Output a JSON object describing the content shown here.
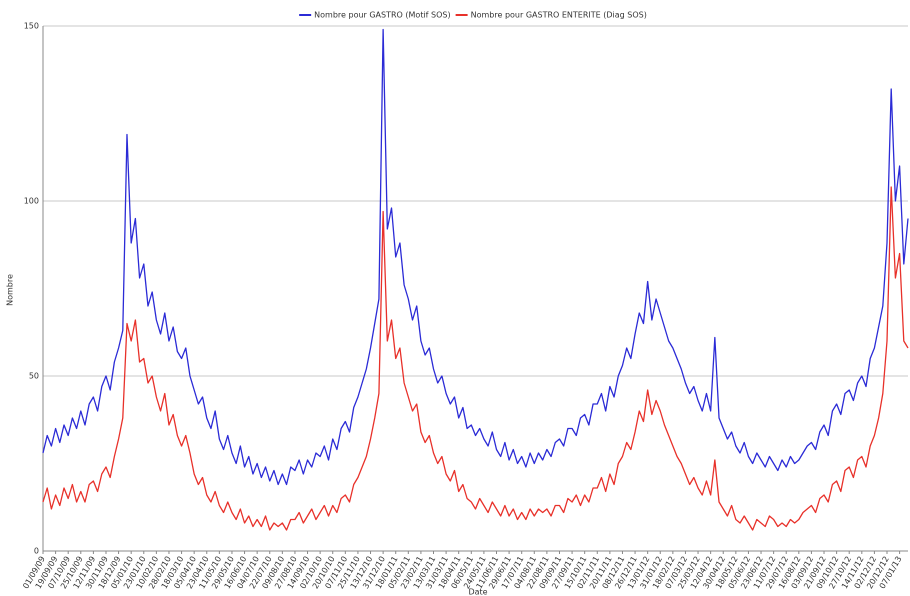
{
  "chart_data": {
    "type": "line",
    "legend": "top",
    "grid": true,
    "y_label": "Nombre",
    "x_label": "Date",
    "ylim": [
      0,
      150
    ],
    "yticks": [
      0,
      50,
      100,
      150
    ],
    "categories": [
      "01/09/09",
      null,
      null,
      "19/09/09",
      null,
      null,
      "07/10/09",
      null,
      null,
      "25/10/09",
      null,
      null,
      "12/11/09",
      null,
      null,
      "30/11/09",
      null,
      null,
      "18/12/09",
      null,
      null,
      "05/01/10",
      null,
      null,
      "23/01/10",
      null,
      null,
      "10/02/10",
      null,
      null,
      "28/02/10",
      null,
      null,
      "18/03/10",
      null,
      null,
      "05/04/10",
      null,
      null,
      "23/04/10",
      null,
      null,
      "11/05/10",
      null,
      null,
      "29/05/10",
      null,
      null,
      "16/06/10",
      null,
      null,
      "04/07/10",
      null,
      null,
      "22/07/10",
      null,
      null,
      "09/08/10",
      null,
      null,
      "27/08/10",
      null,
      null,
      "14/09/10",
      null,
      null,
      "02/10/10",
      null,
      null,
      "20/10/10",
      null,
      null,
      "07/11/10",
      null,
      null,
      "25/11/10",
      null,
      null,
      "13/12/10",
      null,
      null,
      "31/12/10",
      null,
      null,
      "18/01/11",
      null,
      null,
      "05/02/11",
      null,
      null,
      "23/02/11",
      null,
      null,
      "13/03/11",
      null,
      null,
      "31/03/11",
      null,
      null,
      "18/04/11",
      null,
      null,
      "06/05/11",
      null,
      null,
      "24/05/11",
      null,
      null,
      "11/06/11",
      null,
      null,
      "29/06/11",
      null,
      null,
      "17/07/11",
      null,
      null,
      "04/08/11",
      null,
      null,
      "22/08/11",
      null,
      null,
      "09/09/11",
      null,
      null,
      "27/09/11",
      null,
      null,
      "15/10/11",
      null,
      null,
      "02/11/11",
      null,
      null,
      "20/11/11",
      null,
      null,
      "08/12/11",
      null,
      null,
      "26/12/11",
      null,
      null,
      "13/01/12",
      null,
      null,
      "31/01/12",
      null,
      null,
      "18/02/12",
      null,
      null,
      "07/03/12",
      null,
      null,
      "25/03/12",
      null,
      null,
      "12/04/12",
      null,
      null,
      "30/04/12",
      null,
      null,
      "18/05/12",
      null,
      null,
      "05/06/12",
      null,
      null,
      "23/06/12",
      null,
      null,
      "11/07/12",
      null,
      null,
      "29/07/12",
      null,
      null,
      "16/08/12",
      null,
      null,
      "03/09/12",
      null,
      null,
      "21/09/12",
      null,
      null,
      "09/10/12",
      null,
      null,
      "27/10/12",
      null,
      null,
      "14/11/12",
      null,
      null,
      "02/12/12",
      null,
      null,
      "20/12/12",
      null,
      null,
      "07/01/13",
      null,
      null
    ],
    "series": [
      {
        "name": "Nombre pour GASTRO (Motif SOS)",
        "color": "#2b2bd6",
        "values": [
          28,
          33,
          30,
          35,
          31,
          36,
          33,
          38,
          35,
          40,
          36,
          42,
          44,
          40,
          47,
          50,
          46,
          54,
          58,
          63,
          119,
          88,
          95,
          78,
          82,
          70,
          74,
          66,
          62,
          68,
          60,
          64,
          57,
          55,
          58,
          50,
          46,
          42,
          44,
          38,
          35,
          40,
          32,
          29,
          33,
          28,
          25,
          30,
          24,
          27,
          22,
          25,
          21,
          24,
          20,
          23,
          19,
          22,
          19,
          24,
          23,
          26,
          22,
          26,
          24,
          28,
          27,
          30,
          26,
          32,
          29,
          35,
          37,
          34,
          41,
          44,
          48,
          52,
          58,
          65,
          72,
          149,
          92,
          98,
          84,
          88,
          76,
          72,
          66,
          70,
          60,
          56,
          58,
          52,
          48,
          50,
          45,
          42,
          44,
          38,
          41,
          35,
          36,
          33,
          35,
          32,
          30,
          34,
          29,
          27,
          31,
          26,
          29,
          25,
          27,
          24,
          28,
          25,
          28,
          26,
          29,
          27,
          31,
          32,
          30,
          35,
          35,
          33,
          38,
          39,
          36,
          42,
          42,
          45,
          40,
          47,
          44,
          50,
          53,
          58,
          55,
          62,
          68,
          65,
          77,
          66,
          72,
          68,
          64,
          60,
          58,
          55,
          52,
          48,
          45,
          47,
          43,
          40,
          45,
          40,
          61,
          38,
          35,
          32,
          34,
          30,
          28,
          31,
          27,
          25,
          28,
          26,
          24,
          27,
          25,
          23,
          26,
          24,
          27,
          25,
          26,
          28,
          30,
          31,
          29,
          34,
          36,
          33,
          40,
          42,
          39,
          45,
          46,
          43,
          48,
          50,
          47,
          55,
          58,
          64,
          70,
          88,
          132,
          100,
          110,
          82,
          95
        ]
      },
      {
        "name": "Nombre pour GASTRO ENTERITE (Diag SOS)",
        "color": "#e8312a",
        "values": [
          14,
          18,
          12,
          16,
          13,
          18,
          15,
          19,
          14,
          17,
          14,
          19,
          20,
          17,
          22,
          24,
          21,
          27,
          32,
          38,
          65,
          60,
          66,
          54,
          55,
          48,
          50,
          44,
          40,
          45,
          36,
          39,
          33,
          30,
          33,
          28,
          22,
          19,
          21,
          16,
          14,
          17,
          13,
          11,
          14,
          11,
          9,
          12,
          8,
          10,
          7,
          9,
          7,
          10,
          6,
          8,
          7,
          8,
          6,
          9,
          9,
          11,
          8,
          10,
          12,
          9,
          11,
          13,
          10,
          13,
          11,
          15,
          16,
          14,
          19,
          21,
          24,
          27,
          32,
          38,
          45,
          97,
          60,
          66,
          55,
          58,
          48,
          44,
          40,
          42,
          34,
          31,
          33,
          28,
          25,
          27,
          22,
          20,
          23,
          17,
          19,
          15,
          14,
          12,
          15,
          13,
          11,
          14,
          12,
          10,
          13,
          10,
          12,
          9,
          11,
          9,
          12,
          10,
          12,
          11,
          12,
          10,
          13,
          13,
          11,
          15,
          14,
          16,
          13,
          16,
          14,
          18,
          18,
          21,
          17,
          22,
          19,
          25,
          27,
          31,
          29,
          34,
          40,
          37,
          46,
          39,
          43,
          40,
          36,
          33,
          30,
          27,
          25,
          22,
          19,
          21,
          18,
          16,
          20,
          16,
          26,
          14,
          12,
          10,
          13,
          9,
          8,
          10,
          8,
          6,
          9,
          8,
          7,
          10,
          9,
          7,
          8,
          7,
          9,
          8,
          9,
          11,
          12,
          13,
          11,
          15,
          16,
          14,
          19,
          20,
          17,
          23,
          24,
          21,
          26,
          27,
          24,
          30,
          33,
          38,
          45,
          60,
          104,
          78,
          85,
          60,
          58
        ]
      }
    ]
  }
}
